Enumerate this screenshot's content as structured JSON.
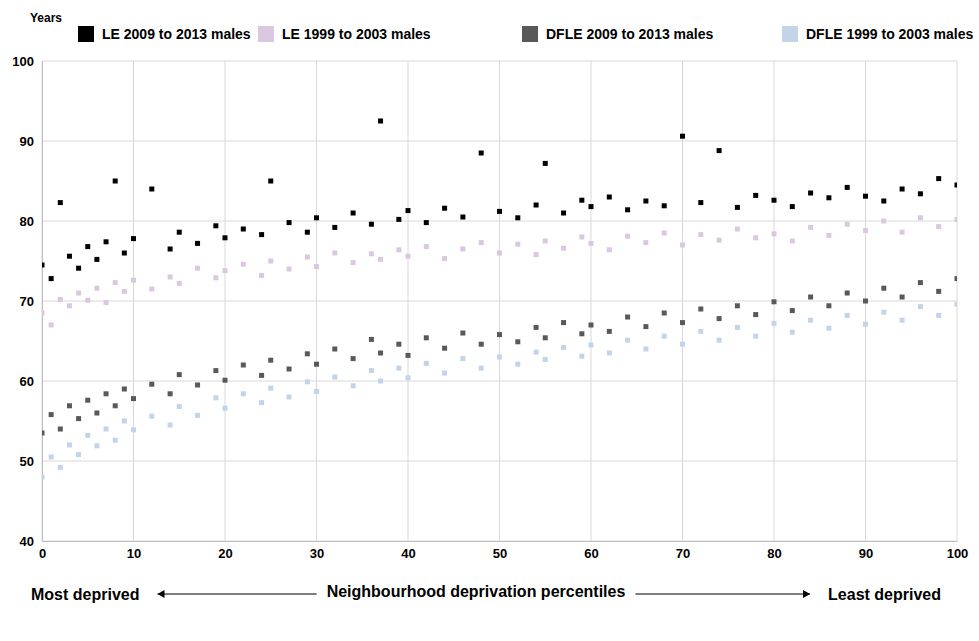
{
  "chart_data": {
    "type": "scatter",
    "y_label": "Years",
    "x_label": "Neighbourhood deprivation percentiles",
    "annotations": [
      "Most deprived",
      "Least deprived"
    ],
    "legend": "top",
    "grid": true,
    "marker": "square",
    "xlim": [
      0,
      100
    ],
    "xticks": [
      0,
      10,
      20,
      30,
      40,
      50,
      60,
      70,
      80,
      90,
      100
    ],
    "ylim": [
      40,
      100
    ],
    "yticks": [
      40,
      50,
      60,
      70,
      80,
      90,
      100
    ],
    "x": [
      0,
      1,
      2,
      3,
      4,
      5,
      6,
      7,
      8,
      9,
      10,
      12,
      14,
      15,
      17,
      19,
      20,
      22,
      24,
      25,
      27,
      29,
      30,
      32,
      34,
      36,
      37,
      39,
      40,
      42,
      44,
      46,
      48,
      50,
      52,
      54,
      55,
      57,
      59,
      60,
      62,
      64,
      66,
      68,
      70,
      72,
      74,
      76,
      78,
      80,
      82,
      84,
      86,
      88,
      90,
      92,
      94,
      96,
      98,
      100
    ],
    "series": [
      {
        "name": "LE 2009 to 2013 males",
        "color": "#000000",
        "values": [
          74.5,
          72.8,
          82.3,
          75.6,
          74.1,
          76.8,
          75.2,
          77.4,
          85.0,
          76.0,
          77.8,
          84.0,
          76.5,
          78.6,
          77.2,
          79.4,
          77.9,
          79.0,
          78.3,
          85.0,
          79.8,
          78.6,
          80.4,
          79.2,
          81.0,
          79.6,
          92.5,
          80.2,
          81.3,
          79.8,
          81.6,
          80.5,
          88.5,
          81.2,
          80.4,
          82.0,
          87.2,
          81.0,
          82.6,
          81.8,
          83.0,
          81.4,
          82.5,
          81.9,
          90.6,
          82.3,
          88.8,
          81.7,
          83.2,
          82.6,
          81.8,
          83.5,
          82.9,
          84.2,
          83.1,
          82.5,
          84.0,
          83.4,
          85.3,
          84.5
        ]
      },
      {
        "name": "LE 1999 to 2003 males",
        "color": "#d9c8e0",
        "values": [
          68.5,
          67.0,
          70.2,
          69.4,
          71.0,
          70.1,
          71.6,
          69.8,
          72.3,
          71.2,
          72.6,
          71.5,
          73.0,
          72.2,
          74.1,
          72.9,
          73.8,
          74.6,
          73.2,
          75.0,
          74.0,
          75.5,
          74.3,
          76.0,
          74.8,
          75.9,
          75.2,
          76.4,
          75.6,
          76.8,
          75.3,
          76.5,
          77.3,
          76.0,
          77.1,
          75.8,
          77.5,
          76.6,
          78.0,
          77.2,
          76.4,
          78.1,
          77.3,
          78.5,
          77.0,
          78.3,
          77.6,
          79.0,
          77.9,
          78.4,
          77.5,
          79.2,
          78.2,
          79.6,
          78.8,
          80.0,
          78.6,
          80.4,
          79.3,
          80.2
        ]
      },
      {
        "name": "DFLE 2009 to 2013 males",
        "color": "#595959",
        "values": [
          53.5,
          55.8,
          54.0,
          56.9,
          55.3,
          57.6,
          56.0,
          58.4,
          56.9,
          59.0,
          57.8,
          59.6,
          58.4,
          60.8,
          59.5,
          61.3,
          60.1,
          62.0,
          60.7,
          62.6,
          61.5,
          63.4,
          62.1,
          64.0,
          62.8,
          65.2,
          63.5,
          64.6,
          63.2,
          65.4,
          64.1,
          66.0,
          64.6,
          65.8,
          64.9,
          66.7,
          65.4,
          67.3,
          65.9,
          67.0,
          66.2,
          68.0,
          66.8,
          68.5,
          67.3,
          69.0,
          67.8,
          69.4,
          68.3,
          69.9,
          68.8,
          70.5,
          69.4,
          71.0,
          70.0,
          71.6,
          70.5,
          72.3,
          71.2,
          72.8
        ]
      },
      {
        "name": "DFLE 1999 to 2003 males",
        "color": "#c3d4e9",
        "values": [
          48.0,
          50.5,
          49.2,
          52.0,
          50.8,
          53.2,
          51.9,
          54.0,
          52.6,
          55.0,
          53.9,
          55.6,
          54.5,
          56.8,
          55.7,
          57.9,
          56.6,
          58.4,
          57.3,
          59.1,
          58.0,
          59.9,
          58.7,
          60.5,
          59.4,
          61.3,
          60.0,
          61.6,
          60.4,
          62.2,
          61.0,
          62.8,
          61.6,
          63.0,
          62.1,
          63.6,
          62.7,
          64.2,
          63.1,
          64.5,
          63.5,
          65.1,
          64.0,
          65.6,
          64.6,
          66.2,
          65.1,
          66.7,
          65.6,
          67.2,
          66.1,
          67.6,
          66.6,
          68.2,
          67.1,
          68.6,
          67.6,
          69.3,
          68.2,
          69.6
        ]
      }
    ]
  }
}
